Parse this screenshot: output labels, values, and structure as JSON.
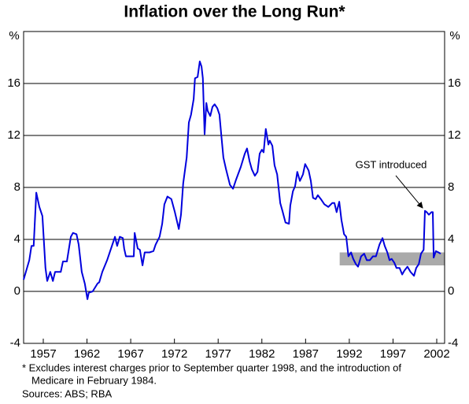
{
  "chart_data": {
    "type": "line",
    "title": "Inflation over the Long Run*",
    "y_unit": "%",
    "footnote": [
      "* Excludes interest charges prior to September quarter 1998, and the introduction of",
      "Medicare in February 1984."
    ],
    "sources": "Sources: ABS; RBA",
    "annotation": "GST introduced",
    "xlim": [
      1954.75,
      2002.9
    ],
    "xticks": [
      1957,
      1962,
      1967,
      1972,
      1977,
      1982,
      1987,
      1992,
      1997,
      2002
    ],
    "ylim": [
      -4,
      20
    ],
    "yticks": [
      -4,
      0,
      4,
      8,
      12,
      16
    ],
    "grid": true,
    "target_band": {
      "x": [
        1990.9,
        2002.9
      ],
      "y": [
        2,
        3
      ],
      "color": "#aaaaaa"
    },
    "x": [
      1954.75,
      1955.4,
      1955.65,
      1955.9,
      1956.2,
      1956.55,
      1956.9,
      1957.25,
      1957.45,
      1957.8,
      1958.1,
      1958.35,
      1959.0,
      1959.25,
      1959.7,
      1960.15,
      1960.4,
      1960.8,
      1961.05,
      1961.4,
      1961.75,
      1962.05,
      1962.2,
      1962.65,
      1963.2,
      1963.4,
      1963.75,
      1964.3,
      1964.85,
      1965.2,
      1965.45,
      1965.75,
      1966.1,
      1966.25,
      1966.45,
      1966.9,
      1967.35,
      1967.45,
      1967.8,
      1968.05,
      1968.35,
      1968.6,
      1969.15,
      1969.6,
      1969.85,
      1970.3,
      1970.6,
      1970.85,
      1971.2,
      1971.65,
      1972.05,
      1972.5,
      1972.75,
      1973.0,
      1973.4,
      1973.65,
      1973.9,
      1974.2,
      1974.35,
      1974.65,
      1974.9,
      1975.1,
      1975.25,
      1975.45,
      1975.65,
      1975.8,
      1976.1,
      1976.35,
      1976.6,
      1976.9,
      1977.15,
      1977.35,
      1977.6,
      1977.9,
      1978.35,
      1978.7,
      1979.05,
      1979.6,
      1980.05,
      1980.3,
      1980.6,
      1980.85,
      1981.2,
      1981.5,
      1981.75,
      1982.0,
      1982.2,
      1982.45,
      1982.75,
      1982.9,
      1983.2,
      1983.45,
      1983.75,
      1984.1,
      1984.35,
      1984.7,
      1985.1,
      1985.25,
      1985.55,
      1985.8,
      1986.05,
      1986.35,
      1986.7,
      1986.95,
      1987.35,
      1987.6,
      1987.85,
      1988.15,
      1988.4,
      1988.75,
      1989.15,
      1989.6,
      1990.05,
      1990.3,
      1990.55,
      1990.85,
      1991.1,
      1991.4,
      1991.65,
      1991.9,
      1992.2,
      1992.45,
      1992.75,
      1993.0,
      1993.35,
      1993.7,
      1994.0,
      1994.35,
      1994.7,
      1995.05,
      1995.45,
      1995.8,
      1996.05,
      1996.35,
      1996.6,
      1996.85,
      1997.15,
      1997.4,
      1997.75,
      1998.05,
      1998.3,
      1998.65,
      1999.0,
      1999.4,
      1999.65,
      1999.95,
      2000.2,
      2000.5,
      2000.65,
      2000.85,
      2001.1,
      2001.4,
      2001.55,
      2001.65,
      2001.9,
      2002.2,
      2002.45
    ],
    "series": [
      {
        "color": "#0000dd",
        "values": [
          0.9,
          2.4,
          3.5,
          3.5,
          7.6,
          6.5,
          5.8,
          1.8,
          0.8,
          1.5,
          0.8,
          1.5,
          1.5,
          2.3,
          2.3,
          4.2,
          4.5,
          4.4,
          3.6,
          1.5,
          0.6,
          -0.6,
          -0.1,
          0,
          0.6,
          0.7,
          1.5,
          2.4,
          3.5,
          4.2,
          3.5,
          4.2,
          4.1,
          3.3,
          2.7,
          2.7,
          2.7,
          4.5,
          3.3,
          3.2,
          2.0,
          3.0,
          3.0,
          3.1,
          3.6,
          4.2,
          5.2,
          6.7,
          7.3,
          7.1,
          6.1,
          4.8,
          5.9,
          8.3,
          10.3,
          13.0,
          13.6,
          14.8,
          16.4,
          16.5,
          17.7,
          17.3,
          16.4,
          12.1,
          14.5,
          13.9,
          13.5,
          14.2,
          14.4,
          14.1,
          13.6,
          12.1,
          10.3,
          9.4,
          8.2,
          7.9,
          8.6,
          9.6,
          10.6,
          11.0,
          10.0,
          9.4,
          8.9,
          9.2,
          10.6,
          10.9,
          10.7,
          12.5,
          11.3,
          11.6,
          11.2,
          9.7,
          9.0,
          6.8,
          6.2,
          5.3,
          5.2,
          6.6,
          7.7,
          8.1,
          9.2,
          8.5,
          9.0,
          9.8,
          9.3,
          8.5,
          7.2,
          7.1,
          7.4,
          7.1,
          6.7,
          6.5,
          6.8,
          6.8,
          6.1,
          6.9,
          5.5,
          4.4,
          4.2,
          2.7,
          3.0,
          2.5,
          2.1,
          1.9,
          2.7,
          2.9,
          2.4,
          2.4,
          2.7,
          2.7,
          3.6,
          4.1,
          3.5,
          3.0,
          2.4,
          2.5,
          2.2,
          1.8,
          1.8,
          1.3,
          1.6,
          1.9,
          1.5,
          1.2,
          1.8,
          2.1,
          2.9,
          3.2,
          6.2,
          6.1,
          5.9,
          6.1,
          6.1,
          2.6,
          3.1,
          3.0,
          2.9
        ]
      }
    ]
  }
}
